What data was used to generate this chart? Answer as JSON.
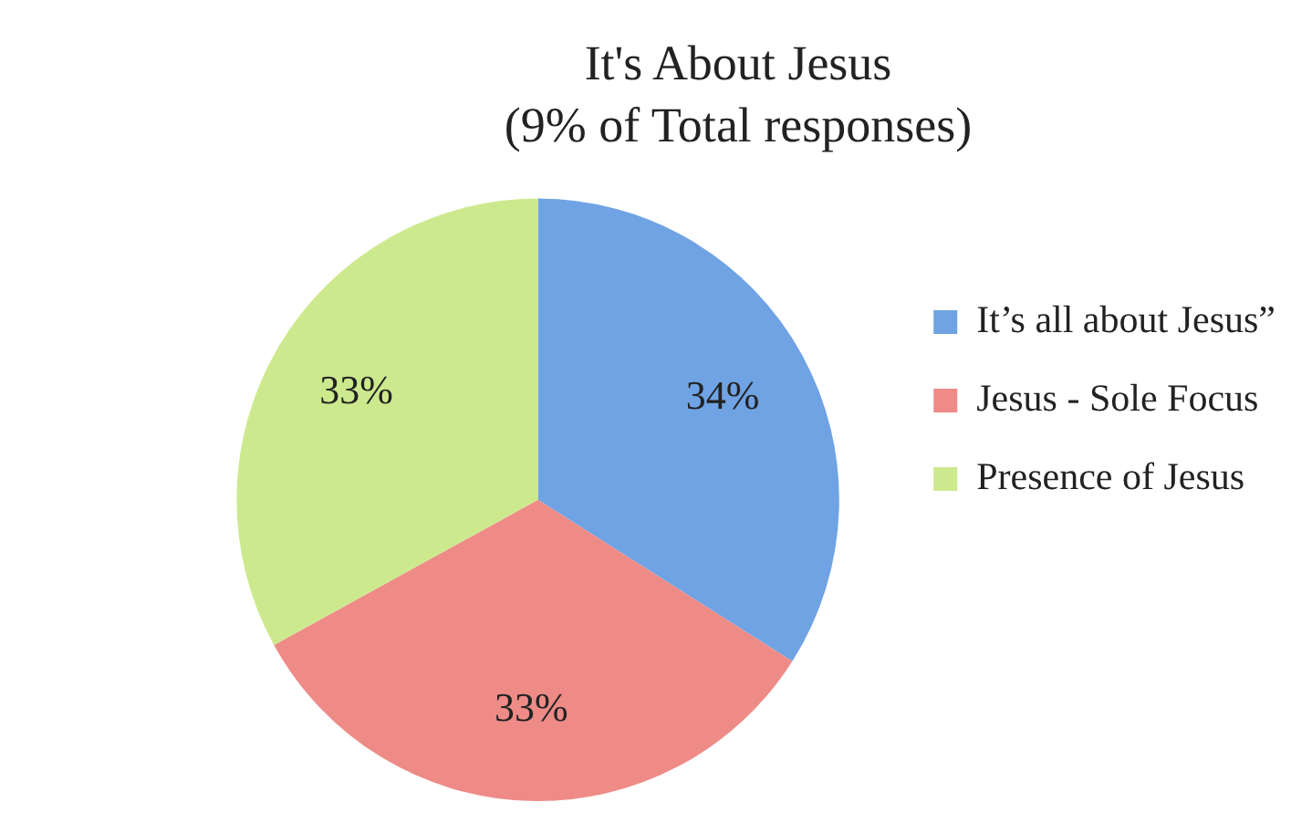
{
  "chart_data": {
    "type": "pie",
    "title": "It's About Jesus",
    "subtitle": "(9% of Total responses)",
    "categories": [
      "It’s all about Jesus”",
      "Jesus - Sole Focus",
      "Presence of Jesus"
    ],
    "values": [
      34,
      33,
      33
    ],
    "colors": [
      "#6fa3e3",
      "#ee8b87",
      "#cde98e"
    ],
    "value_labels": [
      "34%",
      "33%",
      "33%"
    ],
    "legend": "right"
  }
}
